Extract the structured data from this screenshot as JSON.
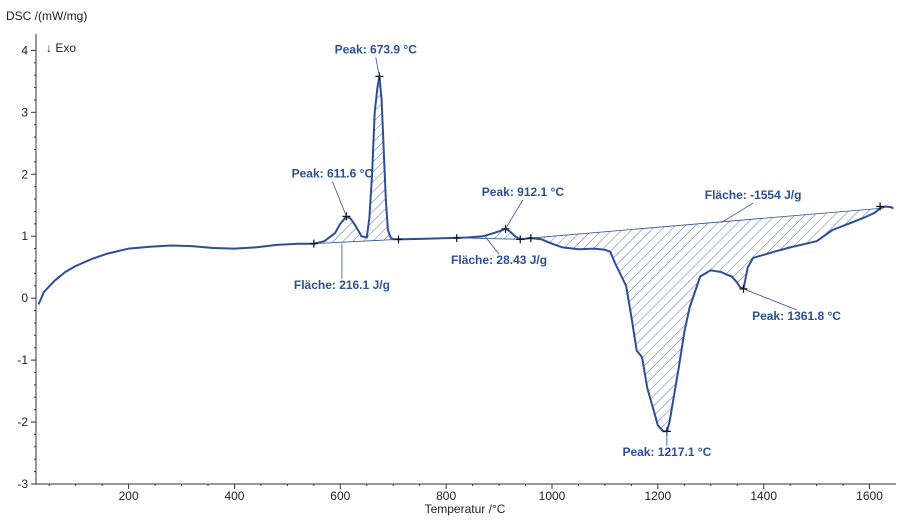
{
  "chart_data": {
    "type": "line",
    "ylabel": "DSC /(mW/mg)",
    "xlabel": "Temperatur /°C",
    "exo_label": "↓ Exo",
    "xlim": [
      25,
      1650
    ],
    "ylim": [
      -3,
      4.2
    ],
    "x_ticks": [
      200,
      400,
      600,
      800,
      1000,
      1200,
      1400,
      1600
    ],
    "y_ticks": [
      -3,
      -2,
      -1,
      0,
      1,
      2,
      3,
      4
    ],
    "grid": false,
    "colors": {
      "curve": "#2c4f94",
      "annotation": "#2c4f94",
      "axis": "#333333"
    },
    "series": [
      {
        "x": [
          30,
          40,
          60,
          80,
          100,
          130,
          160,
          200,
          240,
          280,
          320,
          360,
          400,
          440,
          480,
          520,
          550,
          570,
          590,
          600,
          611.6,
          620,
          630,
          640,
          650,
          655,
          660,
          665,
          670,
          673.9,
          678,
          682,
          686,
          690,
          695,
          700,
          720,
          760,
          800,
          840,
          870,
          890,
          900,
          912.1,
          920,
          930,
          940,
          960,
          980,
          1000,
          1020,
          1050,
          1080,
          1100,
          1110,
          1120,
          1140,
          1150,
          1160,
          1170,
          1180,
          1190,
          1200,
          1210,
          1217.1,
          1222,
          1230,
          1240,
          1250,
          1260,
          1280,
          1300,
          1320,
          1330,
          1340,
          1350,
          1355,
          1361.8,
          1370,
          1380,
          1400,
          1420,
          1450,
          1480,
          1500,
          1530,
          1560,
          1590,
          1610,
          1620,
          1630,
          1640,
          1645
        ],
        "y": [
          -0.1,
          0.1,
          0.28,
          0.42,
          0.52,
          0.63,
          0.72,
          0.8,
          0.83,
          0.85,
          0.84,
          0.81,
          0.8,
          0.82,
          0.86,
          0.88,
          0.88,
          0.92,
          1.05,
          1.2,
          1.32,
          1.28,
          1.15,
          1.0,
          0.98,
          1.3,
          2.0,
          3.0,
          3.4,
          3.58,
          3.2,
          2.4,
          1.6,
          1.1,
          0.98,
          0.95,
          0.95,
          0.96,
          0.97,
          0.98,
          1.0,
          1.05,
          1.08,
          1.12,
          1.08,
          1.0,
          0.95,
          0.97,
          0.95,
          0.88,
          0.82,
          0.79,
          0.8,
          0.78,
          0.75,
          0.55,
          0.2,
          -0.3,
          -0.85,
          -0.95,
          -1.45,
          -1.75,
          -2.05,
          -2.15,
          -2.15,
          -2.0,
          -1.6,
          -1.1,
          -0.55,
          -0.15,
          0.35,
          0.45,
          0.42,
          0.38,
          0.35,
          0.25,
          0.18,
          0.15,
          0.5,
          0.65,
          0.7,
          0.75,
          0.82,
          0.88,
          0.92,
          1.1,
          1.2,
          1.3,
          1.38,
          1.45,
          1.48,
          1.47,
          1.45
        ]
      }
    ],
    "shaded_regions": [
      {
        "x_start": 550,
        "x_end": 710
      },
      {
        "x_start": 820,
        "x_end": 940
      },
      {
        "x_start": 960,
        "x_end": 1620
      }
    ],
    "markers": [
      {
        "x": 550,
        "y": 0.88
      },
      {
        "x": 611.6,
        "y": 1.32
      },
      {
        "x": 673.9,
        "y": 3.58
      },
      {
        "x": 710,
        "y": 0.95
      },
      {
        "x": 820,
        "y": 0.97
      },
      {
        "x": 912.1,
        "y": 1.12
      },
      {
        "x": 940,
        "y": 0.95
      },
      {
        "x": 960,
        "y": 0.97
      },
      {
        "x": 1217.1,
        "y": -2.15
      },
      {
        "x": 1361.8,
        "y": 0.15
      },
      {
        "x": 1620,
        "y": 1.48
      }
    ],
    "annotations": [
      {
        "text": "Peak: 673.9 °C",
        "point": [
          673.9,
          3.58
        ],
        "label": [
          667,
          3.95
        ]
      },
      {
        "text": "Peak: 611.6 °C",
        "point": [
          611.6,
          1.32
        ],
        "label": [
          585,
          1.95
        ]
      },
      {
        "text": "Fläche: 216.1 J/g",
        "point": [
          603,
          0.88
        ],
        "label": [
          603,
          0.15
        ]
      },
      {
        "text": "Peak: 912.1 °C",
        "point": [
          912.1,
          1.12
        ],
        "label": [
          945,
          1.65
        ]
      },
      {
        "text": "Fläche: 28.43 J/g",
        "point": [
          875,
          0.98
        ],
        "label": [
          900,
          0.55
        ]
      },
      {
        "text": "Fläche: -1554 J/g",
        "point": [
          1320,
          1.22
        ],
        "label": [
          1380,
          1.6
        ]
      },
      {
        "text": "Peak: 1361.8 °C",
        "point": [
          1361.8,
          0.15
        ],
        "label": [
          1462,
          -0.35
        ]
      },
      {
        "text": "Peak: 1217.1 °C",
        "point": [
          1217.1,
          -2.15
        ],
        "label": [
          1217.1,
          -2.55
        ]
      }
    ]
  }
}
